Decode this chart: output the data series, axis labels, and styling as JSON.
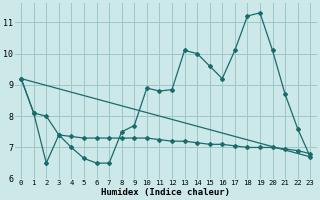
{
  "xlabel": "Humidex (Indice chaleur)",
  "background_color": "#cce8e8",
  "grid_color": "#9dc8c8",
  "line_color": "#1a6b6b",
  "xlim": [
    -0.5,
    23.5
  ],
  "ylim": [
    6.0,
    11.6
  ],
  "yticks": [
    6,
    7,
    8,
    9,
    10,
    11
  ],
  "xticks": [
    0,
    1,
    2,
    3,
    4,
    5,
    6,
    7,
    8,
    9,
    10,
    11,
    12,
    13,
    14,
    15,
    16,
    17,
    18,
    19,
    20,
    21,
    22,
    23
  ],
  "series0": [
    9.2,
    8.1,
    6.5,
    7.4,
    7.0,
    6.65,
    6.5,
    6.5,
    7.5,
    7.7,
    8.9,
    8.8,
    8.85,
    10.1,
    10.0,
    9.6,
    9.2,
    10.1,
    11.2,
    11.3,
    10.1,
    8.7,
    7.6,
    6.7
  ],
  "series1_x": [
    0,
    1,
    2,
    3,
    4,
    5,
    6,
    7,
    8,
    9,
    10,
    11,
    12,
    13,
    14,
    15,
    16,
    17,
    18,
    19,
    20,
    21,
    22,
    23
  ],
  "series1_y": [
    9.2,
    8.1,
    8.0,
    7.4,
    7.35,
    7.3,
    7.3,
    7.3,
    7.3,
    7.3,
    7.3,
    7.25,
    7.2,
    7.2,
    7.15,
    7.1,
    7.1,
    7.05,
    7.0,
    7.0,
    7.0,
    6.95,
    6.9,
    6.8
  ],
  "series2_x": [
    0,
    23
  ],
  "series2_y": [
    9.2,
    6.7
  ]
}
